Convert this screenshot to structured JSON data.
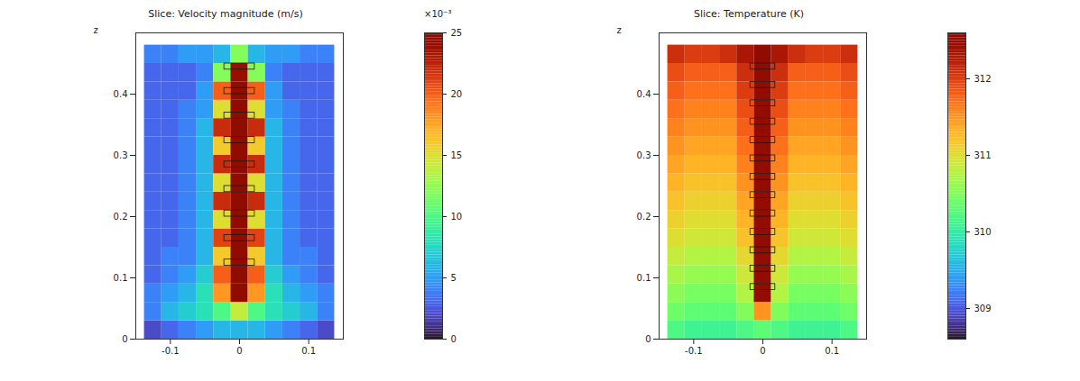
{
  "chart_data": [
    {
      "type": "heatmap",
      "title": "Slice: Velocity magnitude (m/s)",
      "x": [
        -0.125,
        -0.1,
        -0.075,
        -0.05,
        -0.025,
        0,
        0.025,
        0.05,
        0.075,
        0.1,
        0.125
      ],
      "y": [
        0.015,
        0.045,
        0.075,
        0.105,
        0.135,
        0.165,
        0.195,
        0.225,
        0.255,
        0.285,
        0.315,
        0.345,
        0.375,
        0.405,
        0.435,
        0.465
      ],
      "values": [
        [
          2,
          3,
          4,
          5,
          6,
          6,
          6,
          5,
          4,
          3,
          2
        ],
        [
          4,
          6,
          7,
          8,
          10,
          14,
          10,
          8,
          7,
          6,
          4
        ],
        [
          4,
          5,
          6,
          8,
          18,
          25,
          18,
          8,
          6,
          5,
          4
        ],
        [
          3,
          4,
          5,
          7,
          20,
          25,
          20,
          7,
          5,
          4,
          3
        ],
        [
          3,
          4,
          4,
          6,
          16,
          25,
          16,
          6,
          4,
          4,
          3
        ],
        [
          3,
          3,
          4,
          6,
          21,
          25,
          21,
          6,
          4,
          3,
          3
        ],
        [
          3,
          3,
          4,
          6,
          15,
          25,
          15,
          6,
          4,
          3,
          3
        ],
        [
          3,
          3,
          4,
          6,
          22,
          25,
          22,
          6,
          4,
          3,
          3
        ],
        [
          3,
          3,
          4,
          6,
          15,
          25,
          15,
          6,
          4,
          3,
          3
        ],
        [
          3,
          3,
          4,
          6,
          22,
          25,
          22,
          6,
          4,
          3,
          3
        ],
        [
          3,
          3,
          4,
          6,
          16,
          25,
          16,
          6,
          4,
          3,
          3
        ],
        [
          3,
          3,
          4,
          6,
          22,
          25,
          22,
          6,
          4,
          3,
          3
        ],
        [
          3,
          3,
          4,
          5,
          15,
          25,
          15,
          5,
          4,
          3,
          3
        ],
        [
          3,
          3,
          3,
          5,
          20,
          25,
          20,
          5,
          3,
          3,
          3
        ],
        [
          3,
          3,
          3,
          4,
          12,
          24,
          12,
          4,
          3,
          3,
          3
        ],
        [
          4,
          4,
          5,
          5,
          6,
          12,
          6,
          5,
          5,
          4,
          4
        ]
      ],
      "xlim": [
        -0.15,
        0.15
      ],
      "ylim": [
        0,
        0.5
      ],
      "xticks": [
        -0.1,
        0,
        0.1
      ],
      "yticks": [
        0,
        0.1,
        0.2,
        0.3,
        0.4
      ],
      "ylabel": "z",
      "rings": {
        "z": [
          0.445,
          0.405,
          0.365,
          0.325,
          0.285,
          0.245,
          0.205,
          0.165,
          0.125
        ],
        "radius": 0.022
      },
      "colorbar": {
        "range": [
          0,
          25
        ],
        "ticks": [
          0,
          5,
          10,
          15,
          20,
          25
        ],
        "label": "×10⁻³"
      }
    },
    {
      "type": "heatmap",
      "title": "Slice: Temperature (K)",
      "x": [
        -0.125,
        -0.1,
        -0.075,
        -0.05,
        -0.025,
        0,
        0.025,
        0.05,
        0.075,
        0.1,
        0.125
      ],
      "y": [
        0.015,
        0.045,
        0.075,
        0.105,
        0.135,
        0.165,
        0.195,
        0.225,
        0.255,
        0.285,
        0.315,
        0.345,
        0.375,
        0.405,
        0.435,
        0.465
      ],
      "values": [
        [
          310.2,
          310.1,
          310.1,
          310.1,
          310.2,
          310.3,
          310.2,
          310.1,
          310.1,
          310.1,
          310.2
        ],
        [
          310.4,
          310.3,
          310.3,
          310.3,
          310.5,
          311.5,
          310.5,
          310.3,
          310.3,
          310.3,
          310.4
        ],
        [
          310.55,
          310.45,
          310.45,
          310.45,
          310.75,
          312.5,
          310.75,
          310.45,
          310.45,
          310.45,
          310.55
        ],
        [
          310.7,
          310.6,
          310.6,
          310.6,
          310.9,
          312.5,
          310.9,
          310.6,
          310.6,
          310.6,
          310.7
        ],
        [
          310.85,
          310.75,
          310.75,
          310.75,
          311.05,
          312.5,
          311.05,
          310.75,
          310.75,
          310.75,
          310.85
        ],
        [
          311.0,
          310.9,
          310.9,
          310.9,
          311.2,
          312.5,
          311.2,
          310.9,
          310.9,
          310.9,
          311.0
        ],
        [
          311.1,
          311.0,
          311.0,
          311.0,
          311.3,
          312.5,
          311.3,
          311.0,
          311.0,
          311.0,
          311.1
        ],
        [
          311.2,
          311.1,
          311.1,
          311.1,
          311.4,
          312.5,
          311.4,
          311.1,
          311.1,
          311.1,
          311.2
        ],
        [
          311.3,
          311.2,
          311.2,
          311.2,
          311.5,
          312.5,
          311.5,
          311.2,
          311.2,
          311.2,
          311.3
        ],
        [
          311.4,
          311.3,
          311.3,
          311.3,
          311.6,
          312.5,
          311.6,
          311.3,
          311.3,
          311.3,
          311.4
        ],
        [
          311.5,
          311.4,
          311.4,
          311.4,
          311.7,
          312.5,
          311.7,
          311.4,
          311.4,
          311.4,
          311.5
        ],
        [
          311.6,
          311.5,
          311.5,
          311.5,
          311.8,
          312.5,
          311.8,
          311.5,
          311.5,
          311.5,
          311.6
        ],
        [
          311.7,
          311.6,
          311.6,
          311.6,
          311.9,
          312.5,
          311.9,
          311.6,
          311.6,
          311.6,
          311.7
        ],
        [
          311.8,
          311.7,
          311.7,
          311.7,
          312.0,
          312.5,
          312.0,
          311.7,
          311.7,
          311.7,
          311.8
        ],
        [
          311.9,
          311.8,
          311.8,
          311.8,
          312.1,
          312.5,
          312.1,
          311.8,
          311.8,
          311.8,
          311.9
        ],
        [
          312.1,
          312.0,
          312.0,
          312.1,
          312.3,
          312.6,
          312.3,
          312.1,
          312.0,
          312.0,
          312.1
        ]
      ],
      "xlim": [
        -0.15,
        0.15
      ],
      "ylim": [
        0,
        0.5
      ],
      "xticks": [
        -0.1,
        0,
        0.1
      ],
      "yticks": [
        0,
        0.1,
        0.2,
        0.3,
        0.4
      ],
      "ylabel": "z",
      "rings": {
        "z": [
          0.445,
          0.415,
          0.385,
          0.355,
          0.325,
          0.295,
          0.265,
          0.235,
          0.205,
          0.175,
          0.145,
          0.115,
          0.085
        ],
        "radius": 0.018
      },
      "colorbar": {
        "range": [
          308.6,
          312.6
        ],
        "ticks": [
          309,
          310,
          311,
          312
        ]
      }
    }
  ]
}
